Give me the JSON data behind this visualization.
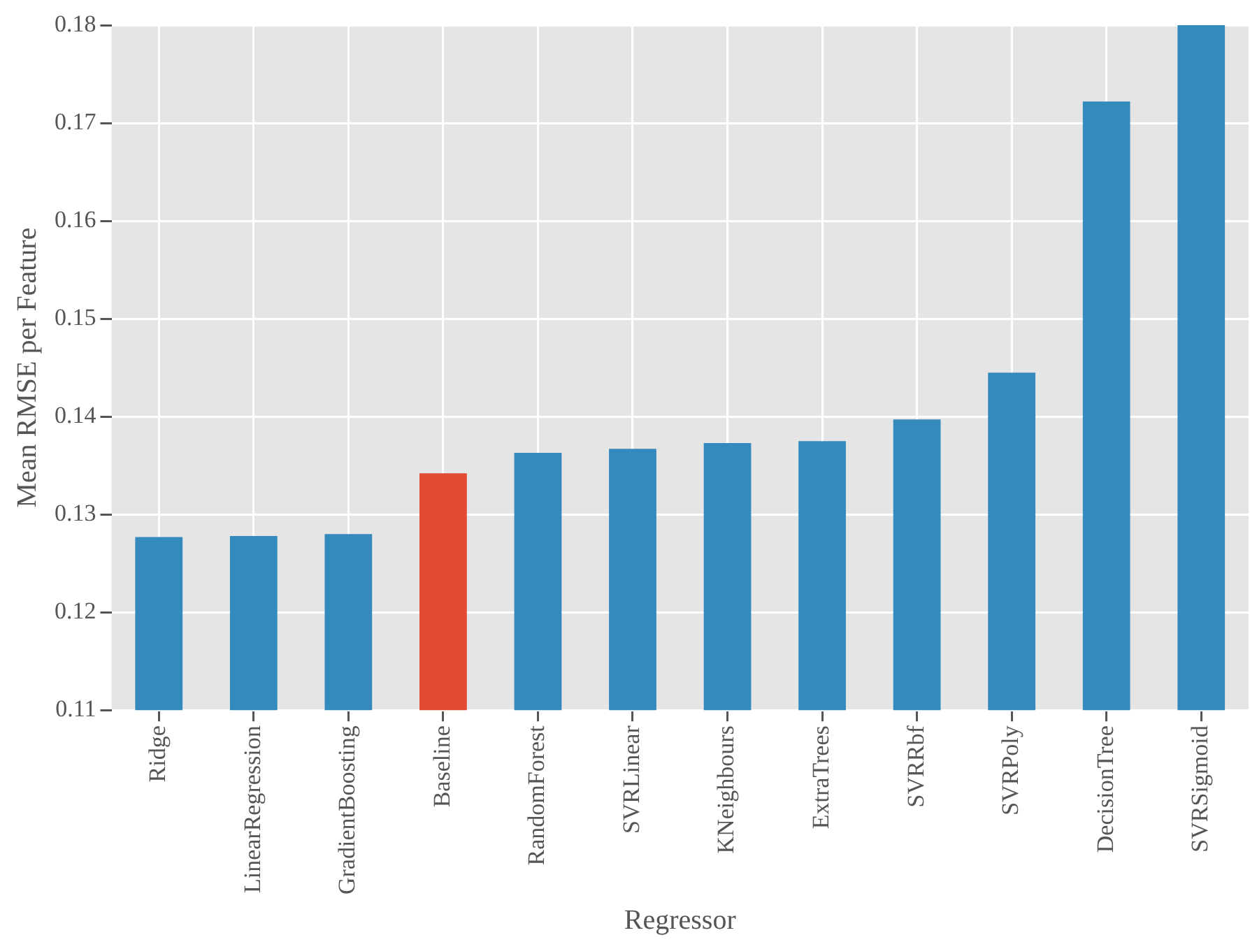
{
  "chart_data": {
    "type": "bar",
    "xlabel": "Regressor",
    "ylabel": "Mean RMSE per Feature",
    "categories": [
      "Ridge",
      "LinearRegression",
      "GradientBoosting",
      "Baseline",
      "RandomForest",
      "SVRLinear",
      "KNeighbours",
      "ExtraTrees",
      "SVRRbf",
      "SVRPoly",
      "DecisionTree",
      "SVRSigmoid"
    ],
    "values": [
      0.1277,
      0.1278,
      0.128,
      0.1342,
      0.1363,
      0.1367,
      0.1373,
      0.1375,
      0.1397,
      0.1445,
      0.1722,
      0.18
    ],
    "colors": [
      "#348abd",
      "#348abd",
      "#348abd",
      "#e24a33",
      "#348abd",
      "#348abd",
      "#348abd",
      "#348abd",
      "#348abd",
      "#348abd",
      "#348abd",
      "#348abd"
    ],
    "ylim": [
      0.11,
      0.18
    ],
    "yticks": [
      0.11,
      0.12,
      0.13,
      0.14,
      0.15,
      0.16,
      0.17,
      0.18
    ],
    "grid": true,
    "legend": false
  }
}
